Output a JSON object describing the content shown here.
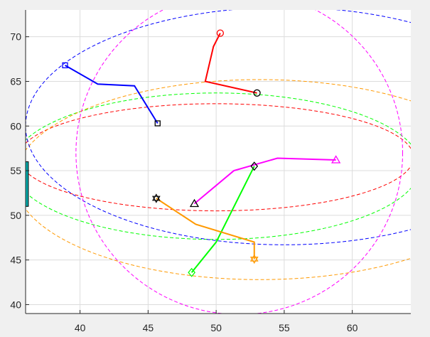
{
  "chart_data": {
    "type": "line",
    "title": "",
    "xlabel": "",
    "ylabel": "",
    "xlim": [
      36,
      64.3
    ],
    "ylim": [
      39,
      73
    ],
    "xticks": [
      40,
      45,
      50,
      55,
      60
    ],
    "yticks": [
      40,
      45,
      50,
      55,
      60,
      65,
      70
    ],
    "grid": true,
    "paths": [
      {
        "color": "#ff0000",
        "start_marker": "circle",
        "end_marker": "circle",
        "x": [
          53.0,
          49.2,
          49.8,
          50.3
        ],
        "y": [
          63.7,
          65.0,
          68.9,
          70.4
        ]
      },
      {
        "color": "#0000ff",
        "start_marker": "square",
        "end_marker": "square",
        "x": [
          45.7,
          44.0,
          41.3,
          38.9
        ],
        "y": [
          60.3,
          64.5,
          64.7,
          66.8
        ]
      },
      {
        "color": "#ff00ff",
        "start_marker": "triangle",
        "end_marker": "triangle",
        "x": [
          48.4,
          51.3,
          54.5,
          58.8
        ],
        "y": [
          51.3,
          55.0,
          56.4,
          56.2
        ]
      },
      {
        "color": "#00ff00",
        "start_marker": "diamond",
        "end_marker": "diamond",
        "x": [
          52.8,
          50.0,
          48.2
        ],
        "y": [
          55.5,
          47.0,
          43.6
        ]
      },
      {
        "color": "#ff9900",
        "start_marker": "hexagram",
        "end_marker": "hexagram",
        "x": [
          45.6,
          48.5,
          52.8,
          52.8
        ],
        "y": [
          51.9,
          49.0,
          47.0,
          45.1
        ]
      }
    ],
    "ellipses": [
      {
        "color": "#ff0000",
        "cx": 50.0,
        "cy": 56.5,
        "rx": 14.5,
        "ry": 6.0
      },
      {
        "color": "#00ff00",
        "cx": 50.0,
        "cy": 55.5,
        "rx": 15.0,
        "ry": 8.2
      },
      {
        "color": "#ff9900",
        "cx": 53.2,
        "cy": 54.0,
        "rx": 18.0,
        "ry": 11.2
      },
      {
        "color": "#0000ff",
        "cx": 55.0,
        "cy": 60.0,
        "rx": 19.0,
        "ry": 13.3
      },
      {
        "color": "#ff00ff",
        "cx": 51.7,
        "cy": 57.0,
        "rx": 12.0,
        "ry": 18.1
      }
    ],
    "rectangle": {
      "color": "#00aaaa",
      "x": [
        36.0,
        36.1
      ],
      "y": [
        51.0,
        56.0
      ]
    }
  }
}
